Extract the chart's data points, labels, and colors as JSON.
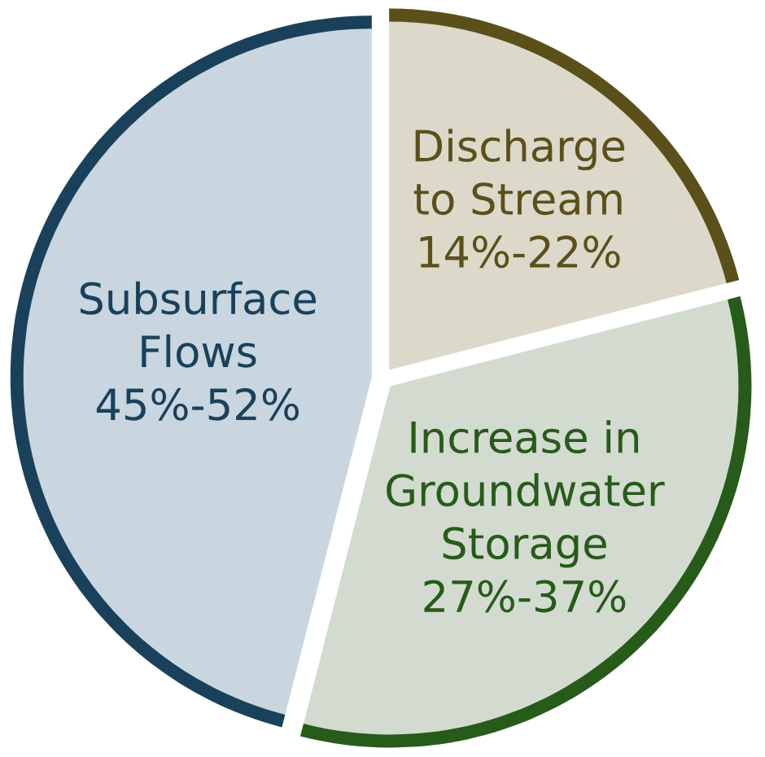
{
  "chart_data": {
    "type": "pie",
    "categories": [
      "Discharge\nto Stream\n14%-22%",
      "Increase in\nGroundwater\nStorage\n27%-37%",
      "Subsurface\nFlows\n45%-52%"
    ],
    "values": [
      21,
      33,
      46
    ],
    "colors": [
      "#dcd9cb",
      "#d3dbd1",
      "#c9d6df"
    ]
  }
}
